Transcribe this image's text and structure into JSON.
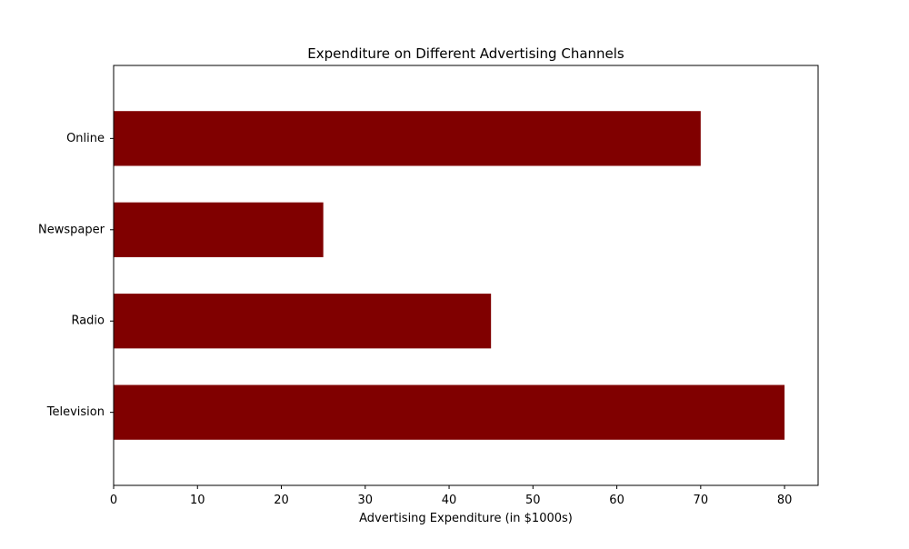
{
  "chart_data": {
    "type": "bar",
    "orientation": "horizontal",
    "title": "Expenditure on Different Advertising Channels",
    "xlabel": "Advertising Expenditure (in $1000s)",
    "ylabel": "",
    "categories": [
      "Television",
      "Radio",
      "Newspaper",
      "Online"
    ],
    "values": [
      80,
      45,
      25,
      70
    ],
    "xlim": [
      0,
      84
    ],
    "xticks": [
      0,
      10,
      20,
      30,
      40,
      50,
      60,
      70,
      80
    ],
    "bar_color": "#800000",
    "grid": false,
    "legend": "none"
  }
}
